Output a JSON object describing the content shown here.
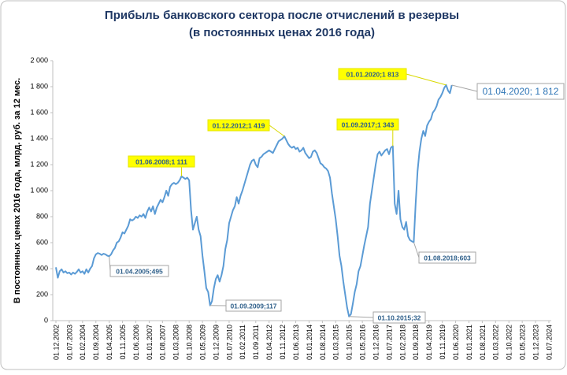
{
  "chart_data": {
    "type": "line",
    "title": "Прибыль банковского сектора после отчислений в резервы",
    "subtitle": "(в постоянных ценах 2016 года)",
    "y_label": "В постоянных ценах 2016 года, млрд. руб. за 12 мес.",
    "ylim": [
      0,
      2000
    ],
    "yticks": [
      0,
      200,
      400,
      600,
      800,
      {
        "value": 1000,
        "label": "1 000"
      },
      {
        "value": 1200,
        "label": "1 200"
      },
      {
        "value": 1400,
        "label": "1 400"
      },
      {
        "value": 1600,
        "label": "1 600"
      },
      {
        "value": 1800,
        "label": "1 800"
      },
      {
        "value": 2000,
        "label": "2 000"
      }
    ],
    "categories": [
      "01.12.2002",
      null,
      null,
      null,
      null,
      null,
      null,
      "01.07.2003",
      null,
      null,
      null,
      null,
      null,
      null,
      "01.02.2004",
      null,
      null,
      null,
      null,
      null,
      null,
      "01.09.2004",
      null,
      null,
      null,
      null,
      null,
      null,
      "01.04.2005",
      null,
      null,
      null,
      null,
      null,
      null,
      "01.11.2005",
      null,
      null,
      null,
      null,
      null,
      null,
      "01.06.2006",
      null,
      null,
      null,
      null,
      null,
      null,
      "01.01.2007",
      null,
      null,
      null,
      null,
      null,
      null,
      "01.08.2007",
      null,
      null,
      null,
      null,
      null,
      null,
      "01.03.2008",
      null,
      null,
      null,
      null,
      null,
      null,
      "01.10.2008",
      null,
      null,
      null,
      null,
      null,
      null,
      "01.05.2009",
      null,
      null,
      null,
      null,
      null,
      null,
      "01.12.2009",
      null,
      null,
      null,
      null,
      null,
      null,
      "01.07.2010",
      null,
      null,
      null,
      null,
      null,
      null,
      "01.02.2011",
      null,
      null,
      null,
      null,
      null,
      null,
      "01.09.2011",
      null,
      null,
      null,
      null,
      null,
      null,
      "01.04.2012",
      null,
      null,
      null,
      null,
      null,
      null,
      "01.11.2012",
      null,
      null,
      null,
      null,
      null,
      null,
      "01.06.2013",
      null,
      null,
      null,
      null,
      null,
      null,
      "01.01.2014",
      null,
      null,
      null,
      null,
      null,
      null,
      "01.08.2014",
      null,
      null,
      null,
      null,
      null,
      null,
      "01.03.2015",
      null,
      null,
      null,
      null,
      null,
      null,
      "01.10.2015",
      null,
      null,
      null,
      null,
      null,
      null,
      "01.05.2016",
      null,
      null,
      null,
      null,
      null,
      null,
      "01.12.2016",
      null,
      null,
      null,
      null,
      null,
      null,
      "01.07.2017",
      null,
      null,
      null,
      null,
      null,
      null,
      "01.02.2018",
      null,
      null,
      null,
      null,
      null,
      null,
      "01.09.2018",
      null,
      null,
      null,
      null,
      null,
      null,
      "01.04.2019",
      null,
      null,
      null,
      null,
      null,
      null,
      "01.11.2019",
      null,
      null,
      null,
      null,
      null,
      null,
      "01.06.2020",
      null,
      null,
      null,
      null,
      null,
      null,
      "01.01.2021",
      null,
      null,
      null,
      null,
      null,
      null,
      "01.08.2021",
      null,
      null,
      null,
      null,
      null,
      null,
      "01.03.2022",
      null,
      null,
      null,
      null,
      null,
      null,
      "01.10.2022",
      null,
      null,
      null,
      null,
      null,
      null,
      "01.05.2023",
      null,
      null,
      null,
      null,
      null,
      null,
      "01.12.2023",
      null,
      null,
      null,
      null,
      null,
      null,
      "01.07.2024"
    ],
    "series": [
      {
        "color": "#5b9bd5",
        "values": [
          410,
          330,
          380,
          395,
          370,
          380,
          365,
          370,
          355,
          370,
          360,
          375,
          395,
          370,
          380,
          360,
          395,
          370,
          400,
          420,
          480,
          510,
          520,
          515,
          505,
          515,
          510,
          500,
          495,
          510,
          540,
          560,
          600,
          610,
          640,
          680,
          670,
          700,
          730,
          780,
          770,
          780,
          800,
          790,
          810,
          800,
          820,
          790,
          840,
          870,
          840,
          880,
          820,
          870,
          900,
          930,
          910,
          950,
          1000,
          960,
          1030,
          1050,
          1060,
          1050,
          1060,
          1080,
          1111,
          1100,
          1090,
          1100,
          1080,
          850,
          700,
          750,
          800,
          700,
          650,
          500,
          380,
          250,
          220,
          117,
          150,
          250,
          320,
          350,
          300,
          350,
          420,
          550,
          620,
          750,
          800,
          850,
          880,
          950,
          900,
          960,
          1000,
          1050,
          1100,
          1150,
          1200,
          1230,
          1240,
          1200,
          1180,
          1250,
          1260,
          1280,
          1290,
          1300,
          1310,
          1300,
          1290,
          1320,
          1350,
          1380,
          1390,
          1400,
          1419,
          1390,
          1360,
          1340,
          1330,
          1340,
          1320,
          1330,
          1300,
          1310,
          1330,
          1290,
          1270,
          1250,
          1260,
          1300,
          1310,
          1290,
          1250,
          1210,
          1200,
          1180,
          1170,
          1150,
          1100,
          980,
          880,
          780,
          650,
          500,
          420,
          300,
          200,
          100,
          32,
          50,
          130,
          220,
          280,
          380,
          420,
          500,
          580,
          650,
          720,
          900,
          1000,
          1100,
          1200,
          1280,
          1300,
          1270,
          1290,
          1310,
          1320,
          1280,
          1330,
          1343,
          900,
          820,
          1000,
          780,
          720,
          700,
          760,
          650,
          620,
          610,
          603,
          900,
          1150,
          1300,
          1400,
          1460,
          1420,
          1500,
          1530,
          1550,
          1600,
          1620,
          1650,
          1700,
          1720,
          1750,
          1790,
          1813,
          1770,
          1750,
          1812,
          null,
          null,
          null,
          null,
          null,
          null,
          null,
          null,
          null,
          null,
          null,
          null,
          null,
          null,
          null,
          null,
          null,
          null,
          null,
          null,
          null,
          null,
          null,
          null,
          null,
          null,
          null,
          null,
          null,
          null,
          null,
          null,
          null,
          null,
          null,
          null,
          null,
          null,
          null,
          null,
          null,
          null,
          null,
          null,
          null,
          null,
          null,
          null,
          null,
          null,
          null
        ]
      }
    ],
    "annotations": [
      "01.04.2005;495",
      "01.06.2008;1 111",
      "01.09.2009;117",
      "01.12.2012;1 419",
      "01.10.2015;32",
      "01.09.2017;1 343",
      "01.08.2018;603",
      "01.01.2020;1 813",
      "01.04.2020; 1 812"
    ]
  }
}
